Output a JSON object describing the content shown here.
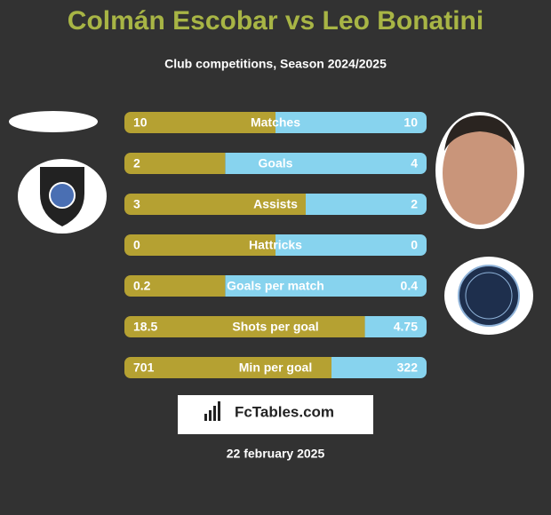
{
  "header": {
    "title": "Colmán Escobar vs Leo Bonatini",
    "subtitle": "Club competitions, Season 2024/2025"
  },
  "rows": [
    {
      "label": "Matches",
      "left": 10,
      "right": 10
    },
    {
      "label": "Goals",
      "left": 2,
      "right": 4
    },
    {
      "label": "Assists",
      "left": 3,
      "right": 2
    },
    {
      "label": "Hattricks",
      "left": 0,
      "right": 0
    },
    {
      "label": "Goals per match",
      "left": 0.2,
      "right": 0.4
    },
    {
      "label": "Shots per goal",
      "left": 18.5,
      "right": 4.75
    },
    {
      "label": "Min per goal",
      "left": 701,
      "right": 322
    }
  ],
  "brand": "FcTables.com",
  "date": "22 february 2025"
}
